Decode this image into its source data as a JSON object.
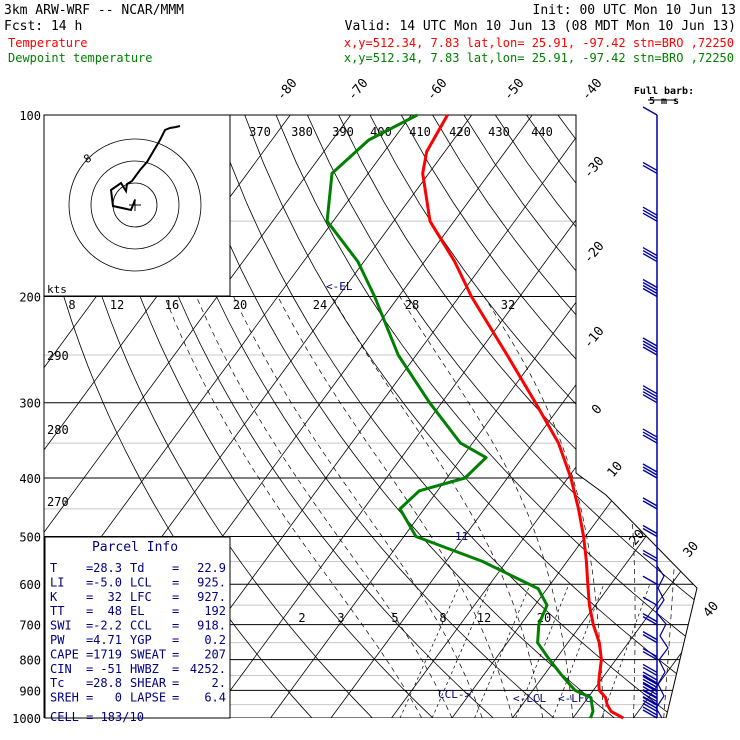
{
  "header": {
    "line1_left": "3km ARW-WRF -- NCAR/MMM",
    "line1_right": "Init: 00 UTC Mon 10 Jun 13",
    "line2_left": "Fcst:    14 h",
    "line2_right": "Valid: 14 UTC Mon 10 Jun 13 (08 MDT Mon 10 Jun 13)",
    "temp_label": "Temperature",
    "temp_info": "x,y=512.34,  7.83   lat,lon= 25.91, -97.42  stn=BRO ,72250",
    "dew_label": "Dewpoint temperature",
    "dew_info": "x,y=512.34,  7.83   lat,lon= 25.91, -97.42  stn=BRO ,72250",
    "temp_color": "#ff0000",
    "dew_color": "#008000"
  },
  "chart_data": {
    "type": "line",
    "subtype": "skew-t log-p",
    "pressure_levels": [
      100,
      200,
      300,
      400,
      500,
      600,
      700,
      800,
      900,
      1000
    ],
    "isotherm_labels": [
      -80,
      -70,
      -60,
      -50,
      -40,
      -30,
      -20,
      -10,
      0,
      10,
      20,
      30,
      40
    ],
    "theta_e_labels": [
      370,
      380,
      390,
      400,
      410,
      420,
      430,
      440
    ],
    "theta_labels": [
      290,
      280,
      270
    ],
    "mixing_ratio_labels": [
      2,
      3,
      5,
      8,
      12,
      20
    ],
    "hodograph_ring_labels": [
      8,
      12,
      16,
      20,
      24,
      28,
      32
    ],
    "hodo_units": "kts",
    "hodo_ring_value": "8",
    "markers": {
      "el": "<-EL",
      "ccl": "CCL->",
      "lcl": "<-LCL",
      "lfc": "<-LFC",
      "eleven": "11"
    },
    "barb_legend": {
      "title": "Full barb:",
      "value": "5 m s"
    },
    "series": [
      {
        "name": "Temperature",
        "color": "#ff0000",
        "points": [
          [
            1000,
            28.3
          ],
          [
            975,
            25.5
          ],
          [
            950,
            24.0
          ],
          [
            925,
            22.9
          ],
          [
            900,
            21.0
          ],
          [
            875,
            20.0
          ],
          [
            850,
            19.2
          ],
          [
            800,
            17.6
          ],
          [
            750,
            15.2
          ],
          [
            700,
            12.0
          ],
          [
            650,
            9.0
          ],
          [
            600,
            6.2
          ],
          [
            550,
            3.2
          ],
          [
            500,
            -0.3
          ],
          [
            450,
            -4.5
          ],
          [
            400,
            -9.5
          ],
          [
            350,
            -15.8
          ],
          [
            300,
            -24.5
          ],
          [
            250,
            -35.0
          ],
          [
            200,
            -48.0
          ],
          [
            175,
            -55.0
          ],
          [
            150,
            -64.0
          ],
          [
            125,
            -71.0
          ],
          [
            115,
            -73.0
          ],
          [
            100,
            -74.0
          ]
        ]
      },
      {
        "name": "Dewpoint temperature",
        "color": "#008000",
        "points": [
          [
            1000,
            22.9
          ],
          [
            975,
            22.5
          ],
          [
            950,
            21.5
          ],
          [
            925,
            20.5
          ],
          [
            900,
            17.0
          ],
          [
            875,
            15.0
          ],
          [
            850,
            13.0
          ],
          [
            800,
            9.0
          ],
          [
            750,
            5.0
          ],
          [
            700,
            3.0
          ],
          [
            650,
            2.0
          ],
          [
            610,
            -1.5
          ],
          [
            550,
            -14.0
          ],
          [
            500,
            -28.0
          ],
          [
            450,
            -34.0
          ],
          [
            420,
            -33.0
          ],
          [
            400,
            -27.0
          ],
          [
            370,
            -26.0
          ],
          [
            350,
            -32.0
          ],
          [
            300,
            -42.0
          ],
          [
            250,
            -53.0
          ],
          [
            200,
            -64.0
          ],
          [
            175,
            -71.0
          ],
          [
            150,
            -81.0
          ],
          [
            125,
            -86.0
          ],
          [
            110,
            -84.0
          ],
          [
            100,
            -79.0
          ]
        ]
      }
    ],
    "wind_barbs": [
      {
        "p": 1000,
        "spd": 10
      },
      {
        "p": 975,
        "spd": 15
      },
      {
        "p": 950,
        "spd": 15
      },
      {
        "p": 925,
        "spd": 15
      },
      {
        "p": 900,
        "spd": 15
      },
      {
        "p": 875,
        "spd": 10
      },
      {
        "p": 850,
        "spd": 10
      },
      {
        "p": 800,
        "spd": 10
      },
      {
        "p": 750,
        "spd": 10
      },
      {
        "p": 700,
        "spd": 10
      },
      {
        "p": 650,
        "spd": 5
      },
      {
        "p": 600,
        "spd": 5
      },
      {
        "p": 550,
        "spd": 10
      },
      {
        "p": 500,
        "spd": 10
      },
      {
        "p": 450,
        "spd": 10
      },
      {
        "p": 400,
        "spd": 15
      },
      {
        "p": 350,
        "spd": 15
      },
      {
        "p": 300,
        "spd": 20
      },
      {
        "p": 250,
        "spd": 20
      },
      {
        "p": 200,
        "spd": 20
      },
      {
        "p": 175,
        "spd": 15
      },
      {
        "p": 150,
        "spd": 15
      },
      {
        "p": 125,
        "spd": 10
      },
      {
        "p": 100,
        "spd": 5
      }
    ]
  },
  "parcel_info": {
    "title": "Parcel Info",
    "rows": [
      {
        "k1": "T",
        "v1": "28.3",
        "k2": "Td",
        "v2": "22.9"
      },
      {
        "k1": "LI",
        "v1": "-5.0",
        "k2": "LCL",
        "v2": "925."
      },
      {
        "k1": "K",
        "v1": "32",
        "k2": "LFC",
        "v2": "927."
      },
      {
        "k1": "TT",
        "v1": "48",
        "k2": "EL",
        "v2": "192"
      },
      {
        "k1": "SWI",
        "v1": "-2.2",
        "k2": "CCL",
        "v2": "918."
      },
      {
        "k1": "PW",
        "v1": "4.71",
        "k2": "YGP",
        "v2": "0.2"
      },
      {
        "k1": "CAPE",
        "v1": "1719",
        "k2": "SWEAT",
        "v2": "207"
      },
      {
        "k1": "CIN",
        "v1": "-51",
        "k2": "HWBZ",
        "v2": "4252."
      },
      {
        "k1": "Tc",
        "v1": "28.8",
        "k2": "SHEAR",
        "v2": "2."
      },
      {
        "k1": "SREH",
        "v1": "0",
        "k2": "LAPSE",
        "v2": "6.4"
      }
    ],
    "cell_label": "CELL = 183/10"
  }
}
